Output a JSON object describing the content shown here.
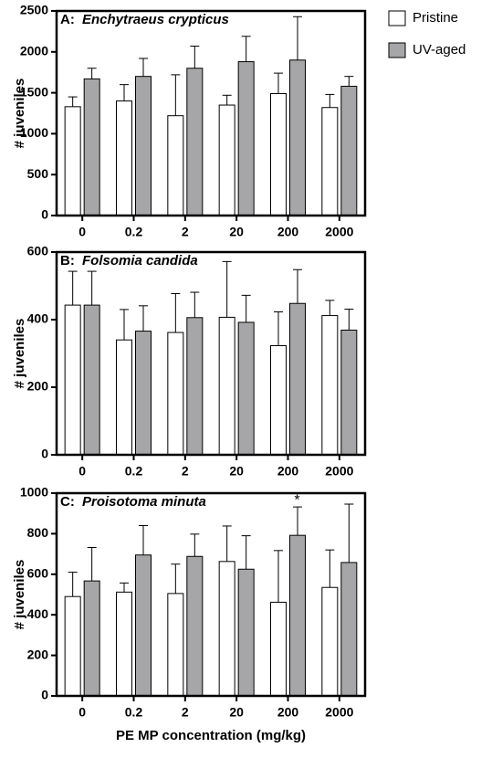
{
  "chart_data": [
    {
      "type": "bar",
      "panel": "A:",
      "title": "Enchytraeus crypticus",
      "ylabel": "# juveniles",
      "categories": [
        "0",
        "0.2",
        "2",
        "20",
        "200",
        "2000"
      ],
      "series": [
        {
          "name": "Pristine",
          "color": "#ffffff",
          "values": [
            1330,
            1400,
            1220,
            1350,
            1490,
            1320
          ],
          "errors": [
            120,
            200,
            500,
            120,
            250,
            160
          ]
        },
        {
          "name": "UV-aged",
          "color": "#a6a6a8",
          "values": [
            1670,
            1700,
            1800,
            1880,
            1900,
            1580
          ],
          "errors": [
            130,
            220,
            270,
            310,
            530,
            120
          ]
        }
      ],
      "ylim": [
        0,
        2500
      ],
      "yticks": [
        0,
        500,
        1000,
        1500,
        2000,
        2500
      ]
    },
    {
      "type": "bar",
      "panel": "B:",
      "title": "Folsomia candida",
      "ylabel": "# juveniles",
      "categories": [
        "0",
        "0.2",
        "2",
        "20",
        "200",
        "2000"
      ],
      "series": [
        {
          "color": "#ffffff",
          "values": [
            443,
            340,
            362,
            407,
            323,
            412
          ],
          "errors": [
            100,
            90,
            115,
            165,
            100,
            45
          ]
        },
        {
          "color": "#a6a6a8",
          "values": [
            443,
            366,
            406,
            392,
            448,
            369
          ],
          "errors": [
            100,
            75,
            75,
            80,
            100,
            62
          ]
        }
      ],
      "ylim": [
        0,
        600
      ],
      "yticks": [
        0,
        200,
        400,
        600
      ]
    },
    {
      "type": "bar",
      "panel": "C:",
      "title": "Proisotoma minuta",
      "ylabel": "# juveniles",
      "xlabel": "PE MP concentration (mg/kg)",
      "annotation": "*",
      "categories": [
        "0",
        "0.2",
        "2",
        "20",
        "200",
        "2000"
      ],
      "series": [
        {
          "color": "#ffffff",
          "values": [
            490,
            512,
            505,
            663,
            462,
            535
          ],
          "errors": [
            120,
            45,
            145,
            175,
            255,
            185
          ]
        },
        {
          "color": "#a6a6a8",
          "values": [
            567,
            695,
            688,
            625,
            792,
            658
          ],
          "errors": [
            165,
            145,
            110,
            165,
            140,
            288
          ]
        }
      ],
      "ylim": [
        0,
        1000
      ],
      "yticks": [
        0,
        200,
        400,
        600,
        800,
        1000
      ]
    }
  ]
}
